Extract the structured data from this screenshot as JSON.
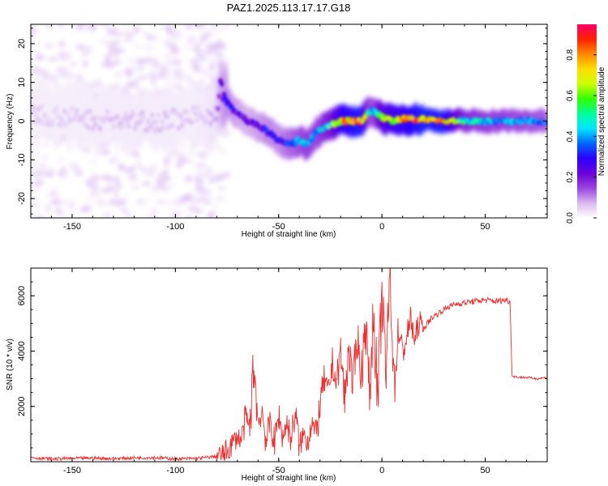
{
  "page_title": "PAZ1.2025.113.17.17.G18",
  "chart_data": [
    {
      "type": "heatmap",
      "title": "PAZ1.2025.113.17.17.G18",
      "xlabel": "Height of straight line (km)",
      "ylabel": "Frequency (Hz)",
      "xlim": [
        -170,
        80
      ],
      "ylim": [
        -25,
        25
      ],
      "xticks": [
        -150,
        -100,
        -50,
        0,
        50
      ],
      "yticks": [
        -20,
        -10,
        0,
        10,
        20
      ],
      "colorbar": {
        "label": "Normalized spectral amplitude",
        "range": [
          0,
          0.95
        ],
        "ticks": [
          0.0,
          0.2,
          0.4,
          0.6,
          0.8
        ],
        "colors": [
          "#ffffff",
          "#d9b8f0",
          "#9a45e0",
          "#6a00d8",
          "#2b00ff",
          "#0066ff",
          "#00e5ff",
          "#00ff99",
          "#33ff00",
          "#ccff00",
          "#ffdd00",
          "#ff8800",
          "#ff2200",
          "#ff0066"
        ]
      },
      "ridge": {
        "x": [
          -170,
          -150,
          -130,
          -110,
          -90,
          -80,
          -78,
          -74,
          -70,
          -65,
          -60,
          -55,
          -50,
          -45,
          -40,
          -36,
          -32,
          -28,
          -25,
          -20,
          -15,
          -10,
          -5,
          0,
          5,
          10,
          20,
          30,
          40,
          50,
          60,
          70,
          80
        ],
        "frequency": [
          2,
          1,
          0,
          0,
          1,
          2,
          9,
          4,
          2,
          0,
          -1,
          -3,
          -5,
          -6,
          -5,
          -6,
          -3,
          -2,
          -1,
          0,
          0,
          0,
          3,
          1,
          0,
          0.5,
          0.5,
          0,
          0,
          0,
          0,
          0,
          0
        ],
        "amplitude": [
          0.05,
          0.05,
          0.06,
          0.06,
          0.05,
          0.08,
          0.25,
          0.3,
          0.25,
          0.22,
          0.25,
          0.3,
          0.28,
          0.35,
          0.4,
          0.45,
          0.4,
          0.5,
          0.55,
          0.8,
          0.85,
          0.9,
          0.35,
          0.7,
          0.75,
          0.8,
          0.9,
          0.88,
          0.5,
          0.45,
          0.42,
          0.4,
          0.38
        ]
      }
    },
    {
      "type": "line",
      "xlabel": "Height of straight line (km)",
      "ylabel": "SNR (10 * v/v)",
      "xlim": [
        -170,
        80
      ],
      "ylim": [
        0,
        7000
      ],
      "xticks": [
        -150,
        -100,
        -50,
        0,
        50
      ],
      "yticks": [
        2000,
        4000,
        6000
      ],
      "color": "#ee3030",
      "series": [
        {
          "x": [
            -170,
            -160,
            -150,
            -140,
            -130,
            -120,
            -110,
            -100,
            -90,
            -85,
            -80,
            -76,
            -72,
            -70,
            -68,
            -66,
            -64,
            -62,
            -60,
            -58,
            -56,
            -54,
            -52,
            -50,
            -48,
            -46,
            -44,
            -42,
            -40,
            -38,
            -36,
            -34,
            -32,
            -30,
            -28,
            -26,
            -24,
            -22,
            -20,
            -18,
            -16,
            -14,
            -12,
            -10,
            -8,
            -6,
            -4,
            -2,
            0,
            2,
            4,
            6,
            8,
            10,
            12,
            14,
            16,
            18,
            20,
            24,
            28,
            32,
            36,
            40,
            45,
            50,
            55,
            60,
            62,
            63,
            64,
            66,
            70,
            75,
            80
          ],
          "y": [
            150,
            100,
            120,
            130,
            110,
            140,
            150,
            100,
            120,
            150,
            200,
            300,
            700,
            900,
            800,
            1600,
            1200,
            3600,
            1400,
            1800,
            700,
            1500,
            600,
            1700,
            900,
            1400,
            800,
            1800,
            500,
            1000,
            700,
            1500,
            900,
            2000,
            3000,
            2400,
            3600,
            2800,
            4000,
            2200,
            4200,
            2600,
            4700,
            3000,
            5200,
            2400,
            5500,
            2000,
            6000,
            3200,
            6900,
            2700,
            4800,
            3900,
            4500,
            5200,
            4300,
            5100,
            4800,
            5200,
            5400,
            5600,
            5700,
            5750,
            5800,
            5850,
            5800,
            5850,
            5800,
            3100,
            3080,
            3050,
            3050,
            3000,
            3050
          ]
        }
      ]
    }
  ]
}
